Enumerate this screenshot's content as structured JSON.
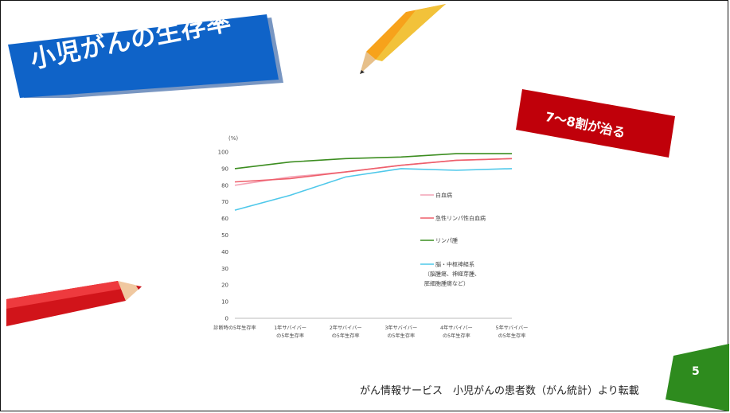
{
  "slide": {
    "title": "小児がんの生存率",
    "badge": "7～8割が治る",
    "source": "がん情報サービス　小児がんの患者数（がん統計）より転載",
    "page_number": "5"
  },
  "colors": {
    "title_bg": "#0f63c8",
    "badge_bg": "#c0000a",
    "page_badge": "#2e8b1e",
    "leukemia": "#f4a3b5",
    "all": "#ee5f6b",
    "lymphoma": "#3c8d20",
    "cns": "#4fc8ea"
  },
  "chart_data": {
    "type": "line",
    "unit_label": "(%)",
    "categories": [
      "診断時の5年生存率",
      "1年サバイバー\nの5年生存率",
      "2年サバイバー\nの5年生存率",
      "3年サバイバー\nの5年生存率",
      "4年サバイバー\nの5年生存率",
      "5年サバイバー\nの5年生存率"
    ],
    "ylim": [
      0,
      100
    ],
    "yticks": [
      0,
      10,
      20,
      30,
      40,
      50,
      60,
      70,
      80,
      90,
      100
    ],
    "grid": false,
    "legend_position": "right",
    "series": [
      {
        "name": "白血病",
        "color_key": "leukemia",
        "values": [
          80,
          85,
          88,
          92,
          95,
          96
        ]
      },
      {
        "name": "急性リンパ性白血病",
        "color_key": "all",
        "values": [
          82,
          84,
          88,
          92,
          95,
          96
        ]
      },
      {
        "name": "リンパ腫",
        "color_key": "lymphoma",
        "values": [
          90,
          94,
          96,
          97,
          99,
          99
        ]
      },
      {
        "name": "脳・中枢神経系\n（脳腫瘍、神経芽腫、\n胚細胞腫瘍など）",
        "color_key": "cns",
        "values": [
          65,
          74,
          85,
          90,
          89,
          90
        ]
      }
    ]
  }
}
